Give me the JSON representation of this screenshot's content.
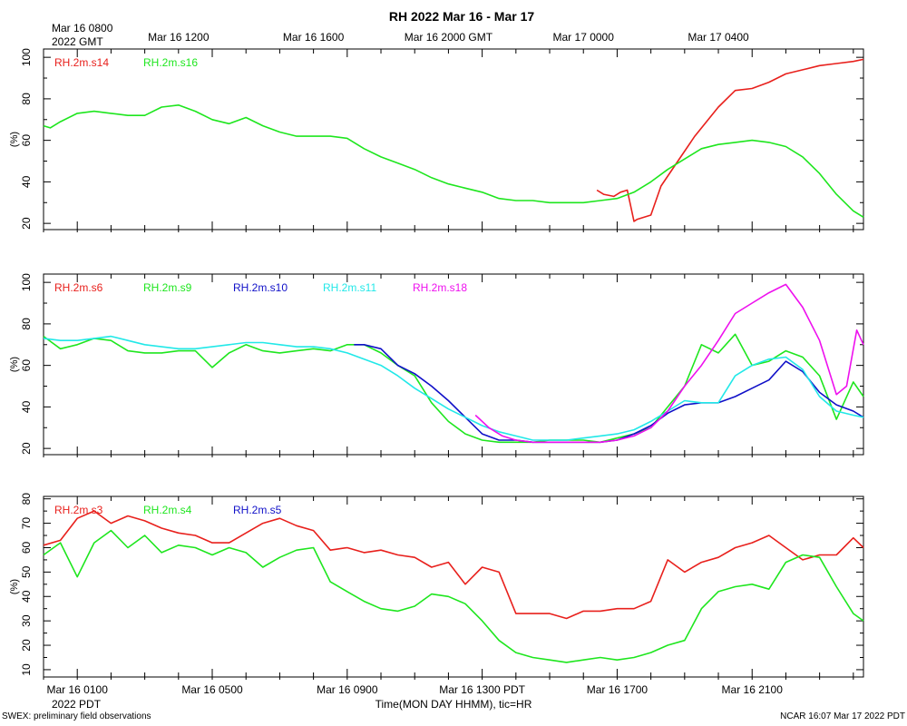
{
  "title": "RH 2022 Mar 16 - Mar 17",
  "top_axis": {
    "first_label_line1": "Mar 16 0800",
    "first_label_line2": "2022 GMT",
    "labels": [
      {
        "hour": 4,
        "text": "Mar 16 1200"
      },
      {
        "hour": 8,
        "text": "Mar 16 1600"
      },
      {
        "hour": 12,
        "text": "Mar 16 2000 GMT"
      },
      {
        "hour": 16,
        "text": "Mar 17 0000"
      },
      {
        "hour": 20,
        "text": "Mar 17 0400"
      }
    ]
  },
  "bottom_axis": {
    "labels": [
      {
        "hour": 1,
        "text": "Mar 16 0100"
      },
      {
        "hour": 5,
        "text": "Mar 16 0500"
      },
      {
        "hour": 9,
        "text": "Mar 16 0900"
      },
      {
        "hour": 13,
        "text": "Mar 16 1300 PDT"
      },
      {
        "hour": 17,
        "text": "Mar 16 1700"
      },
      {
        "hour": 21,
        "text": "Mar 16 2100"
      }
    ],
    "year_label": "2022 PDT",
    "axis_title": "Time(MON DAY HHMM), tic=HR"
  },
  "footer_left": "SWEX: preliminary field observations",
  "footer_right": "NCAR 16:07 Mar 17 2022 PDT",
  "chart_data": [
    {
      "type": "line",
      "x_unit": "hours since Mar 16 0000 PDT",
      "xlim": [
        0,
        24.3
      ],
      "ylim": [
        17,
        104
      ],
      "yticks": [
        20,
        40,
        60,
        80,
        100
      ],
      "ylabel": "(%)",
      "grid": false,
      "series": [
        {
          "name": "RH.2m.s14",
          "color": "#e8201c",
          "x": [
            16.4,
            16.6,
            16.9,
            17.1,
            17.3,
            17.5,
            17.6,
            18.0,
            18.3,
            18.8,
            19.3,
            20.0,
            20.5,
            21.0,
            21.5,
            22.0,
            22.5,
            23.0,
            23.5,
            24.0,
            24.3
          ],
          "y": [
            36,
            34,
            33,
            35,
            36,
            21,
            22,
            24,
            38,
            50,
            62,
            76,
            84,
            85,
            88,
            92,
            94,
            96,
            97,
            98,
            99
          ]
        },
        {
          "name": "RH.2m.s16",
          "color": "#1ee61e",
          "x": [
            0,
            0.2,
            0.5,
            1,
            1.5,
            2,
            2.5,
            3,
            3.5,
            4,
            4.5,
            5,
            5.5,
            6,
            6.5,
            7,
            7.5,
            8,
            8.5,
            9,
            9.5,
            10,
            10.5,
            11,
            11.5,
            12,
            12.5,
            13,
            13.5,
            14,
            14.5,
            15,
            15.5,
            16,
            16.5,
            17,
            17.5,
            18,
            18.5,
            19,
            19.5,
            20,
            20.5,
            21,
            21.5,
            22,
            22.5,
            23,
            23.5,
            24,
            24.3
          ],
          "y": [
            67,
            66,
            69,
            73,
            74,
            73,
            72,
            72,
            76,
            77,
            74,
            70,
            68,
            71,
            67,
            64,
            62,
            62,
            62,
            61,
            56,
            52,
            49,
            46,
            42,
            39,
            37,
            35,
            32,
            31,
            31,
            30,
            30,
            30,
            31,
            32,
            35,
            40,
            46,
            51,
            56,
            58,
            59,
            60,
            59,
            57,
            52,
            44,
            34,
            26,
            23
          ]
        }
      ]
    },
    {
      "type": "line",
      "x_unit": "hours since Mar 16 0000 PDT",
      "xlim": [
        0,
        24.3
      ],
      "ylim": [
        17,
        104
      ],
      "yticks": [
        20,
        40,
        60,
        80,
        100
      ],
      "ylabel": "(%)",
      "grid": false,
      "series": [
        {
          "name": "RH.2m.s6",
          "color": "#e8201c",
          "x": [],
          "y": []
        },
        {
          "name": "RH.2m.s9",
          "color": "#1ee61e",
          "x": [
            0,
            0.5,
            1,
            1.5,
            2,
            2.5,
            3,
            3.5,
            4,
            4.5,
            5,
            5.5,
            6,
            6.5,
            7,
            7.5,
            8,
            8.5,
            9,
            9.5,
            10,
            10.5,
            11,
            11.5,
            12,
            12.5,
            13,
            13.5,
            14,
            14.5,
            15,
            15.5,
            16,
            16.5,
            17,
            17.5,
            18,
            18.5,
            19,
            19.5,
            20,
            20.5,
            21,
            21.5,
            22,
            22.5,
            23,
            23.5,
            24,
            24.3
          ],
          "y": [
            74,
            68,
            70,
            73,
            72,
            67,
            66,
            66,
            67,
            67,
            59,
            66,
            70,
            67,
            66,
            67,
            68,
            67,
            70,
            70,
            66,
            60,
            55,
            42,
            33,
            27,
            24,
            23,
            23,
            23,
            24,
            24,
            24,
            23,
            25,
            27,
            30,
            40,
            50,
            70,
            66,
            75,
            60,
            62,
            67,
            64,
            55,
            34,
            52,
            45
          ]
        },
        {
          "name": "RH.2m.s10",
          "color": "#1010c8",
          "x": [
            9.2,
            9.5,
            10,
            10.5,
            11,
            11.5,
            12,
            12.5,
            13,
            13.5,
            14,
            14.5,
            15,
            15.5,
            16,
            16.5,
            17,
            17.5,
            18,
            18.5,
            19,
            19.5,
            20,
            20.5,
            21,
            21.5,
            22,
            22.5,
            23,
            23.5,
            24,
            24.3
          ],
          "y": [
            70,
            70,
            68,
            60,
            56,
            50,
            43,
            35,
            27,
            24,
            24,
            23,
            23,
            23,
            23,
            23,
            24,
            27,
            31,
            37,
            41,
            42,
            42,
            45,
            49,
            53,
            62,
            57,
            47,
            41,
            38,
            35
          ]
        },
        {
          "name": "RH.2m.s11",
          "color": "#22e8e8",
          "x": [
            0,
            0.5,
            1,
            1.5,
            2,
            2.5,
            3,
            3.5,
            4,
            4.5,
            5,
            5.5,
            6,
            6.5,
            7,
            7.5,
            8,
            8.5,
            9,
            9.5,
            10,
            10.5,
            11,
            11.5,
            12,
            12.5,
            13,
            13.5,
            14,
            14.5,
            15,
            15.5,
            16,
            16.5,
            17,
            17.5,
            18,
            18.5,
            19,
            19.5,
            20,
            20.5,
            21,
            21.5,
            22,
            22.5,
            23,
            23.5,
            24,
            24.3
          ],
          "y": [
            73,
            72,
            72,
            73,
            74,
            72,
            70,
            69,
            68,
            68,
            69,
            70,
            71,
            71,
            70,
            69,
            69,
            68,
            66,
            63,
            60,
            55,
            49,
            44,
            39,
            35,
            31,
            28,
            26,
            24,
            24,
            24,
            25,
            26,
            27,
            29,
            33,
            38,
            43,
            42,
            42,
            55,
            60,
            63,
            64,
            58,
            45,
            38,
            36,
            35
          ]
        },
        {
          "name": "RH.2m.s18",
          "color": "#ee10ee",
          "x": [
            12.8,
            13.2,
            13.6,
            14,
            14.5,
            15,
            15.5,
            16,
            16.5,
            17,
            17.5,
            18,
            18.5,
            19,
            19.5,
            20,
            20.5,
            21,
            21.5,
            22,
            22.5,
            23,
            23.5,
            23.8,
            24.1,
            24.3
          ],
          "y": [
            36,
            30,
            26,
            24,
            23,
            23,
            23,
            23,
            23,
            24,
            26,
            30,
            38,
            50,
            60,
            72,
            85,
            90,
            95,
            99,
            88,
            72,
            46,
            50,
            77,
            70
          ]
        }
      ]
    },
    {
      "type": "line",
      "x_unit": "hours since Mar 16 0000 PDT",
      "xlim": [
        0,
        24.3
      ],
      "ylim": [
        7,
        81
      ],
      "yticks": [
        10,
        20,
        30,
        40,
        50,
        60,
        70,
        80
      ],
      "ylabel": "(%)",
      "grid": false,
      "series": [
        {
          "name": "RH.2m.s3",
          "color": "#e8201c",
          "x": [
            0,
            0.5,
            1,
            1.5,
            2,
            2.5,
            3,
            3.5,
            4,
            4.5,
            5,
            5.5,
            6,
            6.5,
            7,
            7.5,
            8,
            8.5,
            9,
            9.5,
            10,
            10.5,
            11,
            11.5,
            12,
            12.5,
            13,
            13.5,
            14,
            14.5,
            15,
            15.5,
            16,
            16.5,
            17,
            17.5,
            18,
            18.5,
            19,
            19.5,
            20,
            20.5,
            21,
            21.5,
            22,
            22.5,
            23,
            23.5,
            24,
            24.3
          ],
          "y": [
            61,
            63,
            72,
            75,
            70,
            73,
            71,
            68,
            66,
            65,
            62,
            62,
            66,
            70,
            72,
            69,
            67,
            59,
            60,
            58,
            59,
            57,
            56,
            52,
            54,
            45,
            52,
            50,
            33,
            33,
            33,
            31,
            34,
            34,
            35,
            35,
            38,
            55,
            50,
            54,
            56,
            60,
            62,
            65,
            60,
            55,
            57,
            57,
            64,
            60
          ]
        },
        {
          "name": "RH.2m.s4",
          "color": "#1ee61e",
          "x": [
            0,
            0.5,
            1,
            1.5,
            2,
            2.5,
            3,
            3.5,
            4,
            4.5,
            5,
            5.5,
            6,
            6.5,
            7,
            7.5,
            8,
            8.5,
            9,
            9.5,
            10,
            10.5,
            11,
            11.5,
            12,
            12.5,
            13,
            13.5,
            14,
            14.5,
            15,
            15.5,
            16,
            16.5,
            17,
            17.5,
            18,
            18.5,
            19,
            19.5,
            20,
            20.5,
            21,
            21.5,
            22,
            22.5,
            23,
            23.5,
            24,
            24.3
          ],
          "y": [
            57,
            62,
            48,
            62,
            67,
            60,
            65,
            58,
            61,
            60,
            57,
            60,
            58,
            52,
            56,
            59,
            60,
            46,
            42,
            38,
            35,
            34,
            36,
            41,
            40,
            37,
            30,
            22,
            17,
            15,
            14,
            13,
            14,
            15,
            14,
            15,
            17,
            20,
            22,
            35,
            42,
            44,
            45,
            43,
            54,
            57,
            56,
            44,
            33,
            30
          ]
        },
        {
          "name": "RH.2m.s5",
          "color": "#1010c8",
          "x": [],
          "y": []
        }
      ]
    }
  ]
}
